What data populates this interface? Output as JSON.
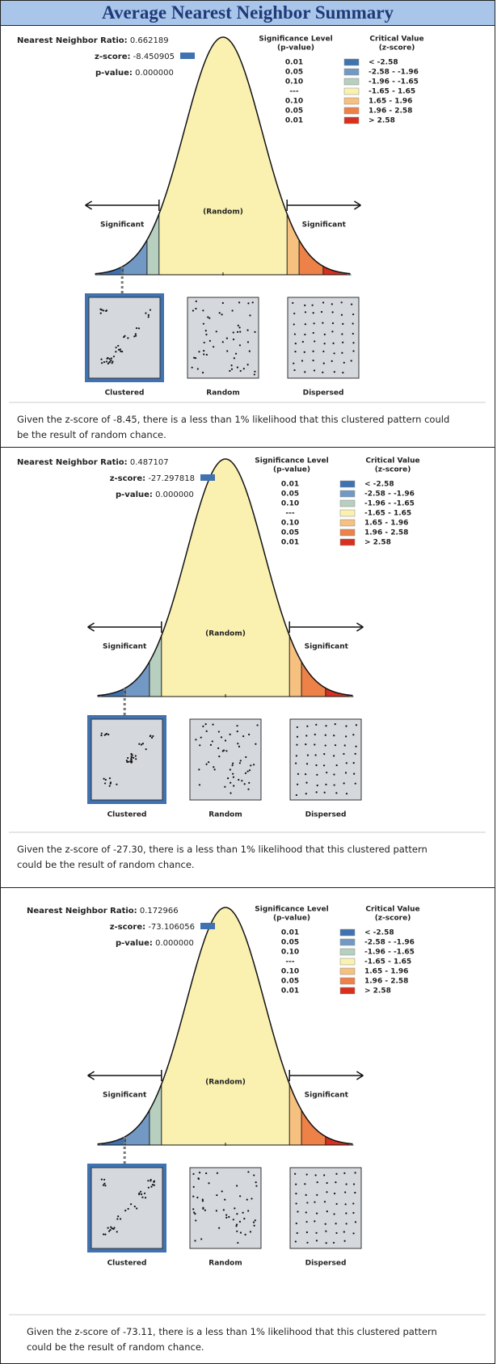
{
  "title": "Average Nearest Neighbor Summary",
  "panels": [
    {
      "ratio_label": "Nearest Neighbor Ratio:",
      "ratio": "0.662189",
      "z_label": "z-score:",
      "z": "-8.450905",
      "p_label": "p-value:",
      "p": "0.000000",
      "legend_header": {
        "sig": "Significance Level",
        "sig_sub": "(p-value)",
        "crit": "Critical Value",
        "crit_sub": "(z-score)"
      },
      "legend_rows": [
        [
          "0.01",
          "< -2.58"
        ],
        [
          "0.05",
          "-2.58 - -1.96"
        ],
        [
          "0.10",
          "-1.96 - -1.65"
        ],
        [
          "---",
          "-1.65 - 1.65"
        ],
        [
          "0.10",
          "1.65 - 1.96"
        ],
        [
          "0.05",
          "1.96 - 2.58"
        ],
        [
          "0.01",
          "> 2.58"
        ]
      ],
      "left_label": "Significant",
      "center_label": "(Random)",
      "right_label": "Significant",
      "patterns": [
        "Clustered",
        "Random",
        "Dispersed"
      ],
      "description": "Given the z-score of -8.45, there is a less than 1% likelihood that this clustered pattern could be the result of random chance."
    },
    {
      "ratio_label": "Nearest Neighbor Ratio:",
      "ratio": "0.487107",
      "z_label": "z-score:",
      "z": "-27.297818",
      "p_label": "p-value:",
      "p": "0.000000",
      "legend_header": {
        "sig": "Significance Level",
        "sig_sub": "(p-value)",
        "crit": "Critical Value",
        "crit_sub": "(z-score)"
      },
      "legend_rows": [
        [
          "0.01",
          "< -2.58"
        ],
        [
          "0.05",
          "-2.58 - -1.96"
        ],
        [
          "0.10",
          "-1.96 - -1.65"
        ],
        [
          "---",
          "-1.65 - 1.65"
        ],
        [
          "0.10",
          "1.65 - 1.96"
        ],
        [
          "0.05",
          "1.96 - 2.58"
        ],
        [
          "0.01",
          "> 2.58"
        ]
      ],
      "left_label": "Significant",
      "center_label": "(Random)",
      "right_label": "Significant",
      "patterns": [
        "Clustered",
        "Random",
        "Dispersed"
      ],
      "description": "Given the z-score of -27.30, there is a less than 1% likelihood that this clustered pattern could be the result of random chance."
    },
    {
      "ratio_label": "Nearest Neighbor Ratio:",
      "ratio": "0.172966",
      "z_label": "z-score:",
      "z": "-73.106056",
      "p_label": "p-value:",
      "p": "0.000000",
      "legend_header": {
        "sig": "Significance Level",
        "sig_sub": "(p-value)",
        "crit": "Critical Value",
        "crit_sub": "(z-score)"
      },
      "legend_rows": [
        [
          "0.01",
          "< -2.58"
        ],
        [
          "0.05",
          "-2.58 - -1.96"
        ],
        [
          "0.10",
          "-1.96 - -1.65"
        ],
        [
          "---",
          "-1.65 - 1.65"
        ],
        [
          "0.10",
          "1.65 - 1.96"
        ],
        [
          "0.05",
          "1.96 - 2.58"
        ],
        [
          "0.01",
          "> 2.58"
        ]
      ],
      "left_label": "Significant",
      "center_label": "(Random)",
      "right_label": "Significant",
      "patterns": [
        "Clustered",
        "Random",
        "Dispersed"
      ],
      "description": "Given the z-score of -73.11, there is a less than 1% likelihood that this clustered pattern could be the result of random chance."
    }
  ]
}
